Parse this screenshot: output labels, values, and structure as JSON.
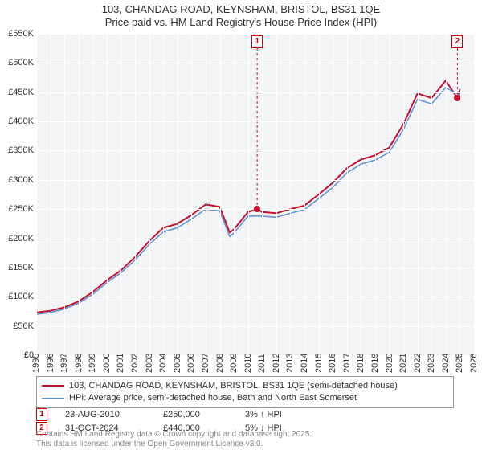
{
  "title_line1": "103, CHANDAG ROAD, KEYNSHAM, BRISTOL, BS31 1QE",
  "title_line2": "Price paid vs. HM Land Registry's House Price Index (HPI)",
  "chart": {
    "type": "line",
    "background_color": "#f3f4f6",
    "grid_color": "#ffffff",
    "font_family": "Arial",
    "axis_fontsize": 11,
    "title_fontsize": 13,
    "x": {
      "min": 1995,
      "max": 2026,
      "ticks": [
        1995,
        1996,
        1997,
        1998,
        1999,
        2000,
        2001,
        2002,
        2003,
        2004,
        2005,
        2006,
        2007,
        2008,
        2009,
        2010,
        2011,
        2012,
        2013,
        2014,
        2015,
        2016,
        2017,
        2018,
        2019,
        2020,
        2021,
        2022,
        2023,
        2024,
        2025,
        2026
      ],
      "rotation": -90
    },
    "y": {
      "min": 0,
      "max": 550000,
      "ticks": [
        0,
        50000,
        100000,
        150000,
        200000,
        250000,
        300000,
        350000,
        400000,
        450000,
        500000,
        550000
      ],
      "labels": [
        "£0",
        "£50K",
        "£100K",
        "£150K",
        "£200K",
        "£250K",
        "£300K",
        "£350K",
        "£400K",
        "£450K",
        "£500K",
        "£550K"
      ]
    },
    "series": [
      {
        "name": "103, CHANDAG ROAD, KEYNSHAM, BRISTOL, BS31 1QE (semi-detached house)",
        "color": "#c8102e",
        "line_width": 2,
        "x": [
          1995,
          1996,
          1997,
          1998,
          1999,
          2000,
          2001,
          2002,
          2003,
          2004,
          2005,
          2006,
          2007,
          2008,
          2008.7,
          2009,
          2010,
          2010.65,
          2011,
          2012,
          2013,
          2014,
          2015,
          2016,
          2017,
          2018,
          2019,
          2020,
          2021,
          2022,
          2023,
          2024,
          2024.83,
          2025
        ],
        "y": [
          73000,
          76000,
          82000,
          92000,
          108000,
          128000,
          145000,
          168000,
          195000,
          218000,
          225000,
          240000,
          258000,
          254000,
          210000,
          215000,
          245000,
          250000,
          245000,
          243000,
          250000,
          256000,
          275000,
          295000,
          320000,
          335000,
          342000,
          355000,
          395000,
          448000,
          440000,
          470000,
          440000,
          455000
        ]
      },
      {
        "name": "HPI: Average price, semi-detached house, Bath and North East Somerset",
        "color": "#5b8fd6",
        "line_width": 1.5,
        "x": [
          1995,
          1996,
          1997,
          1998,
          1999,
          2000,
          2001,
          2002,
          2003,
          2004,
          2005,
          2006,
          2007,
          2008,
          2008.7,
          2009,
          2010,
          2011,
          2012,
          2013,
          2014,
          2015,
          2016,
          2017,
          2018,
          2019,
          2020,
          2021,
          2022,
          2023,
          2024,
          2025
        ],
        "y": [
          70000,
          73000,
          79000,
          89000,
          104000,
          124000,
          141000,
          163000,
          189000,
          211000,
          218000,
          233000,
          250000,
          247000,
          203000,
          209000,
          238000,
          238000,
          236000,
          243000,
          249000,
          268000,
          287000,
          312000,
          327000,
          334000,
          347000,
          386000,
          438000,
          430000,
          458000,
          445000
        ]
      }
    ],
    "markers": [
      {
        "num": "1",
        "date": "23-AUG-2010",
        "price": "£250,000",
        "hpi": "3% ↑ HPI",
        "x": 2010.65,
        "y": 250000,
        "dot_color": "#c8102e",
        "box_top": true
      },
      {
        "num": "2",
        "date": "31-OCT-2024",
        "price": "£440,000",
        "hpi": "5% ↓ HPI",
        "x": 2024.83,
        "y": 440000,
        "dot_color": "#c8102e",
        "box_top": true
      }
    ]
  },
  "legend": {
    "border_color": "#999999",
    "fontsize": 11
  },
  "copyright_line1": "Contains HM Land Registry data © Crown copyright and database right 2025.",
  "copyright_line2": "This data is licensed under the Open Government Licence v3.0."
}
